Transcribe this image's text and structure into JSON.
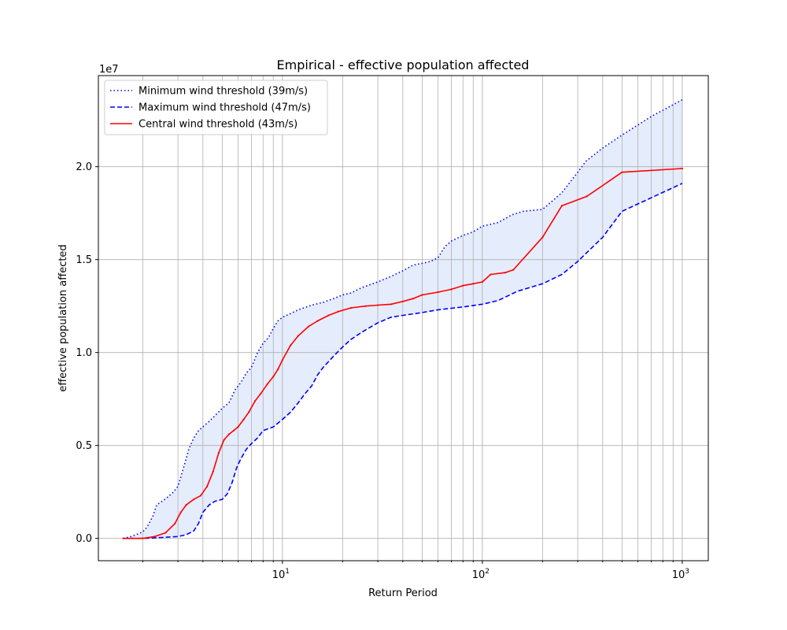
{
  "chart_data": {
    "type": "line",
    "title": "Empirical - effective population affected",
    "xlabel": "Return Period",
    "ylabel": "effective population affected",
    "y_multiplier_label": "1e7",
    "xscale": "log",
    "xlim": [
      1.2,
      1350
    ],
    "ylim": [
      -0.12,
      2.49
    ],
    "x_ticks": [
      {
        "value": 10,
        "base": "10",
        "exp": "1"
      },
      {
        "value": 100,
        "base": "10",
        "exp": "2"
      },
      {
        "value": 1000,
        "base": "10",
        "exp": "3"
      }
    ],
    "y_ticks": [
      {
        "value": 0.0,
        "label": "0.0"
      },
      {
        "value": 0.5,
        "label": "0.5"
      },
      {
        "value": 1.0,
        "label": "1.0"
      },
      {
        "value": 1.5,
        "label": "1.5"
      },
      {
        "value": 2.0,
        "label": "2.0"
      }
    ],
    "grid": "both, major and minor on x",
    "legend_position": "upper-left",
    "band_fill_color": "#e5ecfb",
    "series": [
      {
        "name": "Minimum wind threshold (39m/s)",
        "style": "dotted",
        "color": "#0000ff",
        "points": [
          [
            1.6,
            0.0
          ],
          [
            1.75,
            0.01
          ],
          [
            1.9,
            0.025
          ],
          [
            2.0,
            0.035
          ],
          [
            2.1,
            0.06
          ],
          [
            2.25,
            0.12
          ],
          [
            2.35,
            0.18
          ],
          [
            2.5,
            0.2
          ],
          [
            2.65,
            0.22
          ],
          [
            2.85,
            0.25
          ],
          [
            3.0,
            0.28
          ],
          [
            3.2,
            0.38
          ],
          [
            3.4,
            0.48
          ],
          [
            3.6,
            0.54
          ],
          [
            3.8,
            0.58
          ],
          [
            4.0,
            0.6
          ],
          [
            4.3,
            0.63
          ],
          [
            4.6,
            0.66
          ],
          [
            5.0,
            0.7
          ],
          [
            5.4,
            0.73
          ],
          [
            5.8,
            0.8
          ],
          [
            6.2,
            0.84
          ],
          [
            6.6,
            0.89
          ],
          [
            7.0,
            0.92
          ],
          [
            7.5,
            1.0
          ],
          [
            8.0,
            1.05
          ],
          [
            8.5,
            1.08
          ],
          [
            9.0,
            1.13
          ],
          [
            9.5,
            1.17
          ],
          [
            10.0,
            1.19
          ],
          [
            11.0,
            1.21
          ],
          [
            12.0,
            1.23
          ],
          [
            14.0,
            1.255
          ],
          [
            16.0,
            1.27
          ],
          [
            18.0,
            1.29
          ],
          [
            20.0,
            1.31
          ],
          [
            22.0,
            1.32
          ],
          [
            25.0,
            1.35
          ],
          [
            30.0,
            1.38
          ],
          [
            35.0,
            1.41
          ],
          [
            40.0,
            1.44
          ],
          [
            45.0,
            1.47
          ],
          [
            50.0,
            1.48
          ],
          [
            55.0,
            1.49
          ],
          [
            60.0,
            1.51
          ],
          [
            65.0,
            1.57
          ],
          [
            70.0,
            1.6
          ],
          [
            80.0,
            1.63
          ],
          [
            90.0,
            1.65
          ],
          [
            100.0,
            1.68
          ],
          [
            120.0,
            1.7
          ],
          [
            140.0,
            1.74
          ],
          [
            160.0,
            1.76
          ],
          [
            200.0,
            1.77
          ],
          [
            250.0,
            1.86
          ],
          [
            300.0,
            1.97
          ],
          [
            330.0,
            2.03
          ],
          [
            400.0,
            2.1
          ],
          [
            500.0,
            2.17
          ],
          [
            700.0,
            2.27
          ],
          [
            1000.0,
            2.36
          ]
        ]
      },
      {
        "name": "Maximum wind threshold (47m/s)",
        "style": "dashed",
        "color": "#0000ff",
        "points": [
          [
            1.6,
            0.0
          ],
          [
            2.0,
            0.0
          ],
          [
            2.5,
            0.005
          ],
          [
            3.0,
            0.01
          ],
          [
            3.3,
            0.02
          ],
          [
            3.6,
            0.04
          ],
          [
            3.8,
            0.08
          ],
          [
            4.0,
            0.14
          ],
          [
            4.3,
            0.18
          ],
          [
            4.6,
            0.2
          ],
          [
            5.0,
            0.21
          ],
          [
            5.3,
            0.24
          ],
          [
            5.6,
            0.3
          ],
          [
            5.9,
            0.38
          ],
          [
            6.2,
            0.43
          ],
          [
            6.6,
            0.48
          ],
          [
            7.0,
            0.51
          ],
          [
            7.5,
            0.54
          ],
          [
            8.0,
            0.58
          ],
          [
            9.0,
            0.6
          ],
          [
            10.0,
            0.64
          ],
          [
            11.0,
            0.68
          ],
          [
            12.0,
            0.73
          ],
          [
            13.0,
            0.78
          ],
          [
            14.0,
            0.82
          ],
          [
            15.0,
            0.88
          ],
          [
            16.0,
            0.92
          ],
          [
            18.0,
            0.98
          ],
          [
            20.0,
            1.03
          ],
          [
            22.0,
            1.07
          ],
          [
            25.0,
            1.11
          ],
          [
            30.0,
            1.16
          ],
          [
            35.0,
            1.19
          ],
          [
            40.0,
            1.2
          ],
          [
            50.0,
            1.215
          ],
          [
            60.0,
            1.23
          ],
          [
            80.0,
            1.245
          ],
          [
            100.0,
            1.26
          ],
          [
            120.0,
            1.28
          ],
          [
            150.0,
            1.33
          ],
          [
            200.0,
            1.37
          ],
          [
            250.0,
            1.42
          ],
          [
            300.0,
            1.49
          ],
          [
            400.0,
            1.62
          ],
          [
            500.0,
            1.76
          ],
          [
            1000.0,
            1.91
          ]
        ]
      },
      {
        "name": "Central wind threshold (43m/s)",
        "style": "solid",
        "color": "#ff0000",
        "points": [
          [
            1.6,
            0.0
          ],
          [
            2.0,
            0.0
          ],
          [
            2.3,
            0.01
          ],
          [
            2.6,
            0.03
          ],
          [
            2.9,
            0.08
          ],
          [
            3.1,
            0.14
          ],
          [
            3.3,
            0.18
          ],
          [
            3.6,
            0.21
          ],
          [
            3.9,
            0.23
          ],
          [
            4.2,
            0.28
          ],
          [
            4.5,
            0.36
          ],
          [
            4.8,
            0.46
          ],
          [
            5.1,
            0.53
          ],
          [
            5.4,
            0.56
          ],
          [
            5.7,
            0.58
          ],
          [
            6.0,
            0.6
          ],
          [
            6.4,
            0.64
          ],
          [
            6.8,
            0.68
          ],
          [
            7.3,
            0.74
          ],
          [
            7.8,
            0.78
          ],
          [
            8.4,
            0.83
          ],
          [
            9.0,
            0.87
          ],
          [
            9.5,
            0.91
          ],
          [
            10.0,
            0.96
          ],
          [
            11.0,
            1.04
          ],
          [
            12.0,
            1.09
          ],
          [
            13.5,
            1.14
          ],
          [
            15.0,
            1.17
          ],
          [
            17.0,
            1.2
          ],
          [
            19.0,
            1.22
          ],
          [
            22.0,
            1.24
          ],
          [
            26.0,
            1.25
          ],
          [
            30.0,
            1.255
          ],
          [
            35.0,
            1.26
          ],
          [
            40.0,
            1.275
          ],
          [
            45.0,
            1.29
          ],
          [
            50.0,
            1.31
          ],
          [
            60.0,
            1.325
          ],
          [
            70.0,
            1.34
          ],
          [
            80.0,
            1.36
          ],
          [
            90.0,
            1.37
          ],
          [
            100.0,
            1.38
          ],
          [
            110.0,
            1.42
          ],
          [
            130.0,
            1.43
          ],
          [
            143.0,
            1.445
          ],
          [
            200.0,
            1.62
          ],
          [
            250.0,
            1.79
          ],
          [
            333.0,
            1.84
          ],
          [
            500.0,
            1.97
          ],
          [
            1000.0,
            1.99
          ]
        ]
      }
    ]
  }
}
